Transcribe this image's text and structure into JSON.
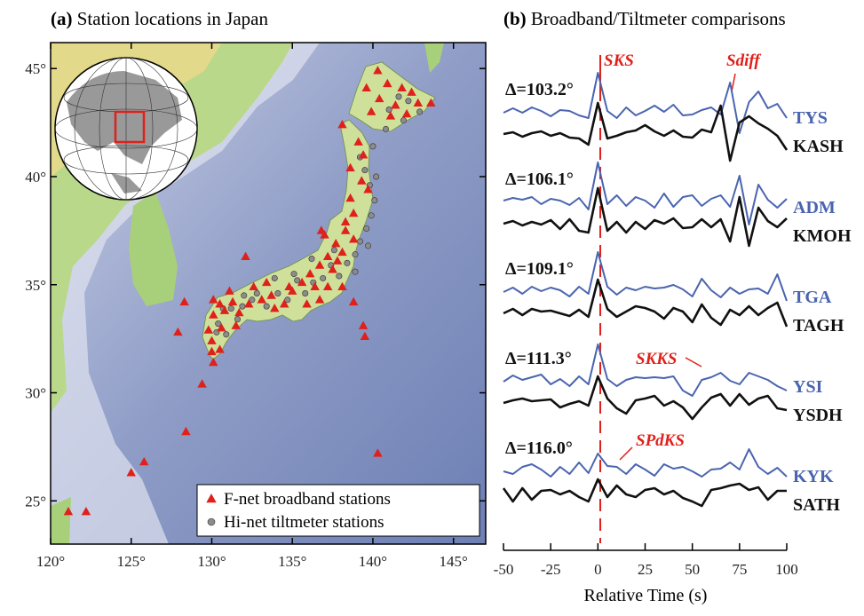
{
  "chart_data": [
    {
      "type": "map",
      "label": "(a)",
      "title": "Station locations in Japan",
      "xlim": [
        120,
        147
      ],
      "ylim": [
        23,
        46.2
      ],
      "xticks": [
        {
          "value": 120,
          "label": "120°"
        },
        {
          "value": 125,
          "label": "125°"
        },
        {
          "value": 130,
          "label": "130°"
        },
        {
          "value": 135,
          "label": "135°"
        },
        {
          "value": 140,
          "label": "140°"
        },
        {
          "value": 145,
          "label": "145°"
        }
      ],
      "yticks": [
        {
          "value": 25,
          "label": "25°"
        },
        {
          "value": 30,
          "label": "30°"
        },
        {
          "value": 35,
          "label": "35°"
        },
        {
          "value": 40,
          "label": "40°"
        },
        {
          "value": 45,
          "label": "45°"
        }
      ],
      "legend": "lower right",
      "series": [
        {
          "name": "F-net broadband stations",
          "color": "#e0201a",
          "marker": "triangle",
          "lon": [
            121.1,
            122.2,
            125.0,
            125.8,
            128.4,
            129.4,
            130.0,
            129.8,
            127.9,
            128.3,
            132.1,
            138.1,
            138.8,
            139.4,
            139.5,
            140.3,
            130.1,
            130.8,
            130.1,
            130.0,
            130.6,
            131.3,
            131.7,
            132.3,
            133.1,
            133.7,
            133.9,
            134.5,
            135.0,
            135.6,
            136.1,
            136.7,
            137.2,
            137.7,
            136.7,
            135.9,
            134.8,
            136.4,
            137.2,
            137.5,
            137.8,
            138.3,
            138.8,
            138.6,
            139.3,
            139.4,
            139.1,
            138.6,
            138.1,
            139.7,
            138.3,
            138.8,
            138.1,
            136.8,
            137.0,
            133.4,
            132.6,
            131.1,
            130.5,
            130.5,
            130.1,
            131.5,
            140.3,
            140.9,
            141.8,
            142.4,
            142.8,
            142.1,
            141.1,
            141.4,
            140.4,
            139.9,
            139.6,
            143.6
          ],
          "lat": [
            24.5,
            24.5,
            26.3,
            26.8,
            28.2,
            30.4,
            31.9,
            32.9,
            32.8,
            34.2,
            36.3,
            34.9,
            34.2,
            33.1,
            32.6,
            27.2,
            34.3,
            33.8,
            33.6,
            32.4,
            33.0,
            34.2,
            33.7,
            34.1,
            34.3,
            34.5,
            33.9,
            34.1,
            34.7,
            35.1,
            35.5,
            35.9,
            36.3,
            36.9,
            34.3,
            34.1,
            34.9,
            34.9,
            34.9,
            35.7,
            36.1,
            37.5,
            38.3,
            39.0,
            39.8,
            41.0,
            41.6,
            40.4,
            42.4,
            39.4,
            37.9,
            37.1,
            36.5,
            37.5,
            37.3,
            35.1,
            34.9,
            34.7,
            34.1,
            32.0,
            31.4,
            33.1,
            44.9,
            44.3,
            44.1,
            43.9,
            43.4,
            42.9,
            42.8,
            43.3,
            43.6,
            43.0,
            44.1,
            43.4
          ]
        },
        {
          "name": "Hi-net tiltmeter stations",
          "color": "#8c8c8c",
          "marker": "circle",
          "lon": [
            130.4,
            130.9,
            131.6,
            132.0,
            132.8,
            133.4,
            134.1,
            134.7,
            135.3,
            135.8,
            136.3,
            136.9,
            137.4,
            137.9,
            138.4,
            138.9,
            139.2,
            139.6,
            139.9,
            140.1,
            139.8,
            139.5,
            139.2,
            140.0,
            140.2,
            139.7,
            138.9,
            137.6,
            136.2,
            135.1,
            133.9,
            132.5,
            131.2,
            130.7,
            130.3,
            131.9,
            141.0,
            141.6,
            142.2,
            142.9,
            141.9,
            140.8
          ],
          "lat": [
            33.2,
            32.7,
            33.4,
            34.5,
            34.6,
            34.0,
            34.6,
            34.3,
            35.2,
            34.6,
            35.1,
            35.3,
            35.9,
            35.4,
            36.0,
            36.4,
            37.0,
            37.6,
            38.2,
            38.9,
            39.6,
            40.3,
            40.9,
            41.4,
            40.0,
            36.8,
            35.6,
            36.6,
            36.2,
            35.5,
            35.3,
            34.3,
            33.9,
            33.9,
            32.8,
            34.0,
            43.1,
            43.7,
            43.5,
            43.0,
            42.6,
            42.2
          ]
        }
      ]
    },
    {
      "type": "line",
      "label": "(b)",
      "title": "Broadband/Tiltmeter comparisons",
      "xlabel": "Relative Time (s)",
      "xlim": [
        -50,
        100
      ],
      "xticks": [
        -50,
        -25,
        0,
        25,
        50,
        75,
        100
      ],
      "x": [
        -50,
        -45,
        -40,
        -35,
        -30,
        -25,
        -20,
        -15,
        -10,
        -5,
        0,
        5,
        10,
        15,
        20,
        25,
        30,
        35,
        40,
        45,
        50,
        55,
        60,
        65,
        70,
        75,
        80,
        85,
        90,
        95,
        100
      ],
      "phases": [
        "SKS",
        "Sdiff",
        "SKKS",
        "SPdKS"
      ],
      "traces": [
        {
          "distance_label": "Δ=103.2°",
          "series": [
            {
              "name": "TYS",
              "color": "#4a64b0",
              "values": [
                0,
                0.5,
                0,
                0.6,
                0.2,
                -0.4,
                0.3,
                0.2,
                -0.3,
                -0.6,
                4.5,
                0.2,
                -0.6,
                0.6,
                -0.3,
                0.2,
                0.8,
                0.1,
                0.9,
                -0.3,
                -0.2,
                0.3,
                0.6,
                -0.2,
                3.4,
                -2.3,
                1.2,
                2.4,
                0.5,
                1.0,
                -0.6
              ]
            },
            {
              "name": "KASH",
              "color": "#111111",
              "values": [
                0,
                0.2,
                -0.3,
                0.1,
                0.3,
                -0.2,
                0.1,
                -0.4,
                -0.5,
                -1.2,
                3.5,
                -0.5,
                -0.2,
                0.2,
                0.4,
                1.0,
                0.3,
                -0.2,
                0.4,
                -0.3,
                -0.4,
                0.5,
                0.2,
                3.2,
                -3.0,
                1.3,
                2.0,
                1.2,
                0.6,
                -0.2,
                -1.8
              ]
            }
          ]
        },
        {
          "distance_label": "Δ=106.1°",
          "series": [
            {
              "name": "ADM",
              "color": "#4a64b0",
              "values": [
                0.2,
                0.5,
                0.3,
                0.6,
                -0.2,
                0.4,
                0.2,
                -0.3,
                0.5,
                -0.8,
                4.5,
                -0.2,
                0.8,
                -0.4,
                0.6,
                0.2,
                -0.6,
                1.0,
                -0.5,
                0.6,
                0.8,
                -0.4,
                0.4,
                0.8,
                -0.5,
                3.0,
                -2.5,
                2.0,
                0.3,
                -0.6,
                0.4
              ]
            },
            {
              "name": "KMOH",
              "color": "#111111",
              "values": [
                0,
                0.3,
                -0.2,
                0.2,
                -0.1,
                0.4,
                -0.6,
                0.5,
                -0.8,
                -1.0,
                4.0,
                -0.8,
                0.2,
                -1.0,
                0.2,
                -0.6,
                0.4,
                0,
                0.6,
                -0.5,
                -0.4,
                0.5,
                -0.4,
                0.5,
                -2.0,
                3.0,
                -2.5,
                1.8,
                0.3,
                -0.4,
                0.6
              ]
            }
          ]
        },
        {
          "distance_label": "Δ=109.1°",
          "series": [
            {
              "name": "TGA",
              "color": "#4a64b0",
              "values": [
                0,
                0.5,
                -0.2,
                0.6,
                0.1,
                0.5,
                0.2,
                -0.5,
                0.6,
                -0.2,
                4.5,
                0.6,
                -0.3,
                0.5,
                0.2,
                0.6,
                0.4,
                0.5,
                0.8,
                0.3,
                -0.5,
                1.5,
                0.2,
                -0.6,
                0.5,
                -0.2,
                0.3,
                0.4,
                -0.2,
                2.0,
                -1.0
              ]
            },
            {
              "name": "TAGH",
              "color": "#111111",
              "values": [
                0,
                0.5,
                -0.2,
                0.5,
                0.2,
                0.3,
                0,
                -0.3,
                0.4,
                -0.4,
                3.8,
                0.5,
                -0.4,
                0.2,
                0.8,
                0.6,
                0.2,
                -0.6,
                0.6,
                0.2,
                -1.0,
                1.0,
                -0.5,
                -1.3,
                0.4,
                -0.2,
                0.8,
                -0.2,
                0.6,
                1.2,
                -1.5
              ]
            }
          ]
        },
        {
          "distance_label": "Δ=111.3°",
          "series": [
            {
              "name": "YSI",
              "color": "#4a64b0",
              "values": [
                0,
                0.7,
                0.2,
                0.5,
                0.8,
                -0.3,
                0.3,
                -0.5,
                0.6,
                -0.3,
                4.2,
                0.3,
                -0.5,
                0.2,
                0.5,
                0.4,
                0.5,
                0.4,
                0.6,
                -1.0,
                -1.6,
                0.2,
                0.5,
                1.0,
                0.1,
                -0.3,
                1.0,
                0.6,
                0.2,
                -0.5,
                -1.0
              ]
            },
            {
              "name": "YSDH",
              "color": "#111111",
              "values": [
                0,
                0.3,
                0.5,
                0.2,
                0.3,
                0.4,
                -0.5,
                -0.1,
                0.2,
                -0.3,
                3.0,
                0.5,
                -0.6,
                -1.2,
                0.3,
                0.5,
                0.8,
                -0.3,
                0.2,
                -0.5,
                -1.8,
                -0.5,
                0.6,
                1.0,
                -0.3,
                1.0,
                -0.2,
                0.5,
                0.8,
                -0.6,
                -0.8
              ]
            }
          ]
        },
        {
          "distance_label": "Δ=116.0°",
          "series": [
            {
              "name": "KYK",
              "color": "#4a64b0",
              "values": [
                0,
                -0.3,
                0.5,
                0.8,
                0.2,
                -0.6,
                0.5,
                -0.3,
                1.0,
                -0.2,
                2.0,
                0.6,
                0.5,
                -0.3,
                0.8,
                0.2,
                -0.5,
                0.8,
                0.3,
                0.5,
                0,
                -0.6,
                0.2,
                0.3,
                1.0,
                0.2,
                2.5,
                0.5,
                -0.3,
                0.4,
                -0.6
              ]
            },
            {
              "name": "SATH",
              "color": "#111111",
              "values": [
                0.5,
                -1.0,
                0.5,
                -0.8,
                0.2,
                0.3,
                -0.2,
                0.2,
                -0.5,
                -1.0,
                1.5,
                -0.5,
                0.8,
                -0.2,
                -0.5,
                0.3,
                0.5,
                -0.2,
                0.2,
                -0.6,
                -1.0,
                -1.5,
                0.3,
                0.5,
                0.8,
                1.0,
                0.3,
                0.6,
                -0.8,
                0.2,
                0.2
              ]
            }
          ]
        }
      ]
    }
  ]
}
